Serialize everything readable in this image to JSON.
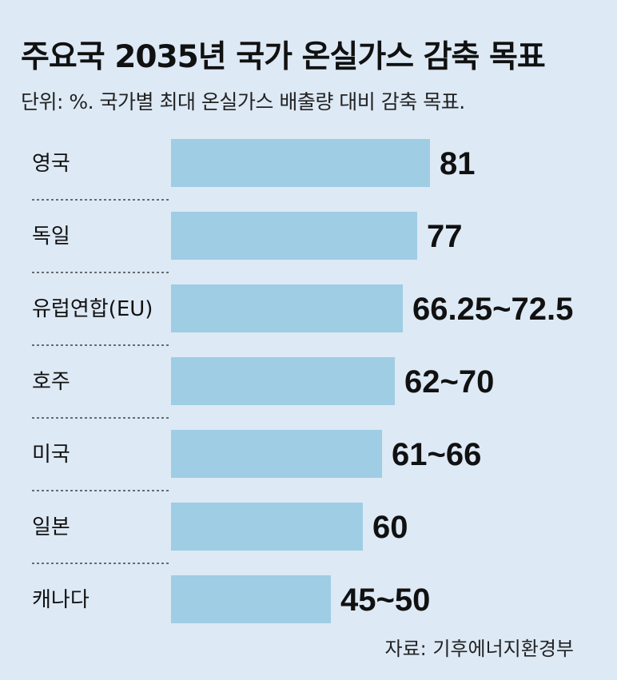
{
  "title": "주요국 2035년 국가 온실가스 감축 목표",
  "subtitle": "단위: %. 국가별 최대 온실가스 배출량 대비 감축 목표.",
  "source": "자료: 기후에너지환경부",
  "colors": {
    "bar": "#9ecde4",
    "background": "#dde9f5",
    "text": "#111111",
    "divider": "#222222"
  },
  "chart_data": {
    "type": "bar",
    "orientation": "horizontal",
    "title": "주요국 2035년 국가 온실가스 감축 목표",
    "subtitle": "단위: %. 국가별 최대 온실가스 배출량 대비 감축 목표.",
    "categories": [
      "영국",
      "독일",
      "유럽연합(EU)",
      "호주",
      "미국",
      "일본",
      "캐나다"
    ],
    "values": [
      81,
      77,
      72.5,
      70,
      66,
      60,
      50
    ],
    "ranges": [
      [
        81,
        81
      ],
      [
        77,
        77
      ],
      [
        66.25,
        72.5
      ],
      [
        62,
        70
      ],
      [
        61,
        66
      ],
      [
        60,
        60
      ],
      [
        45,
        50
      ]
    ],
    "labels": [
      "81",
      "77",
      "66.25~72.5",
      "62~70",
      "61~66",
      "60",
      "45~50"
    ],
    "xlim": [
      0,
      127
    ],
    "grid": false,
    "legend": "none"
  }
}
